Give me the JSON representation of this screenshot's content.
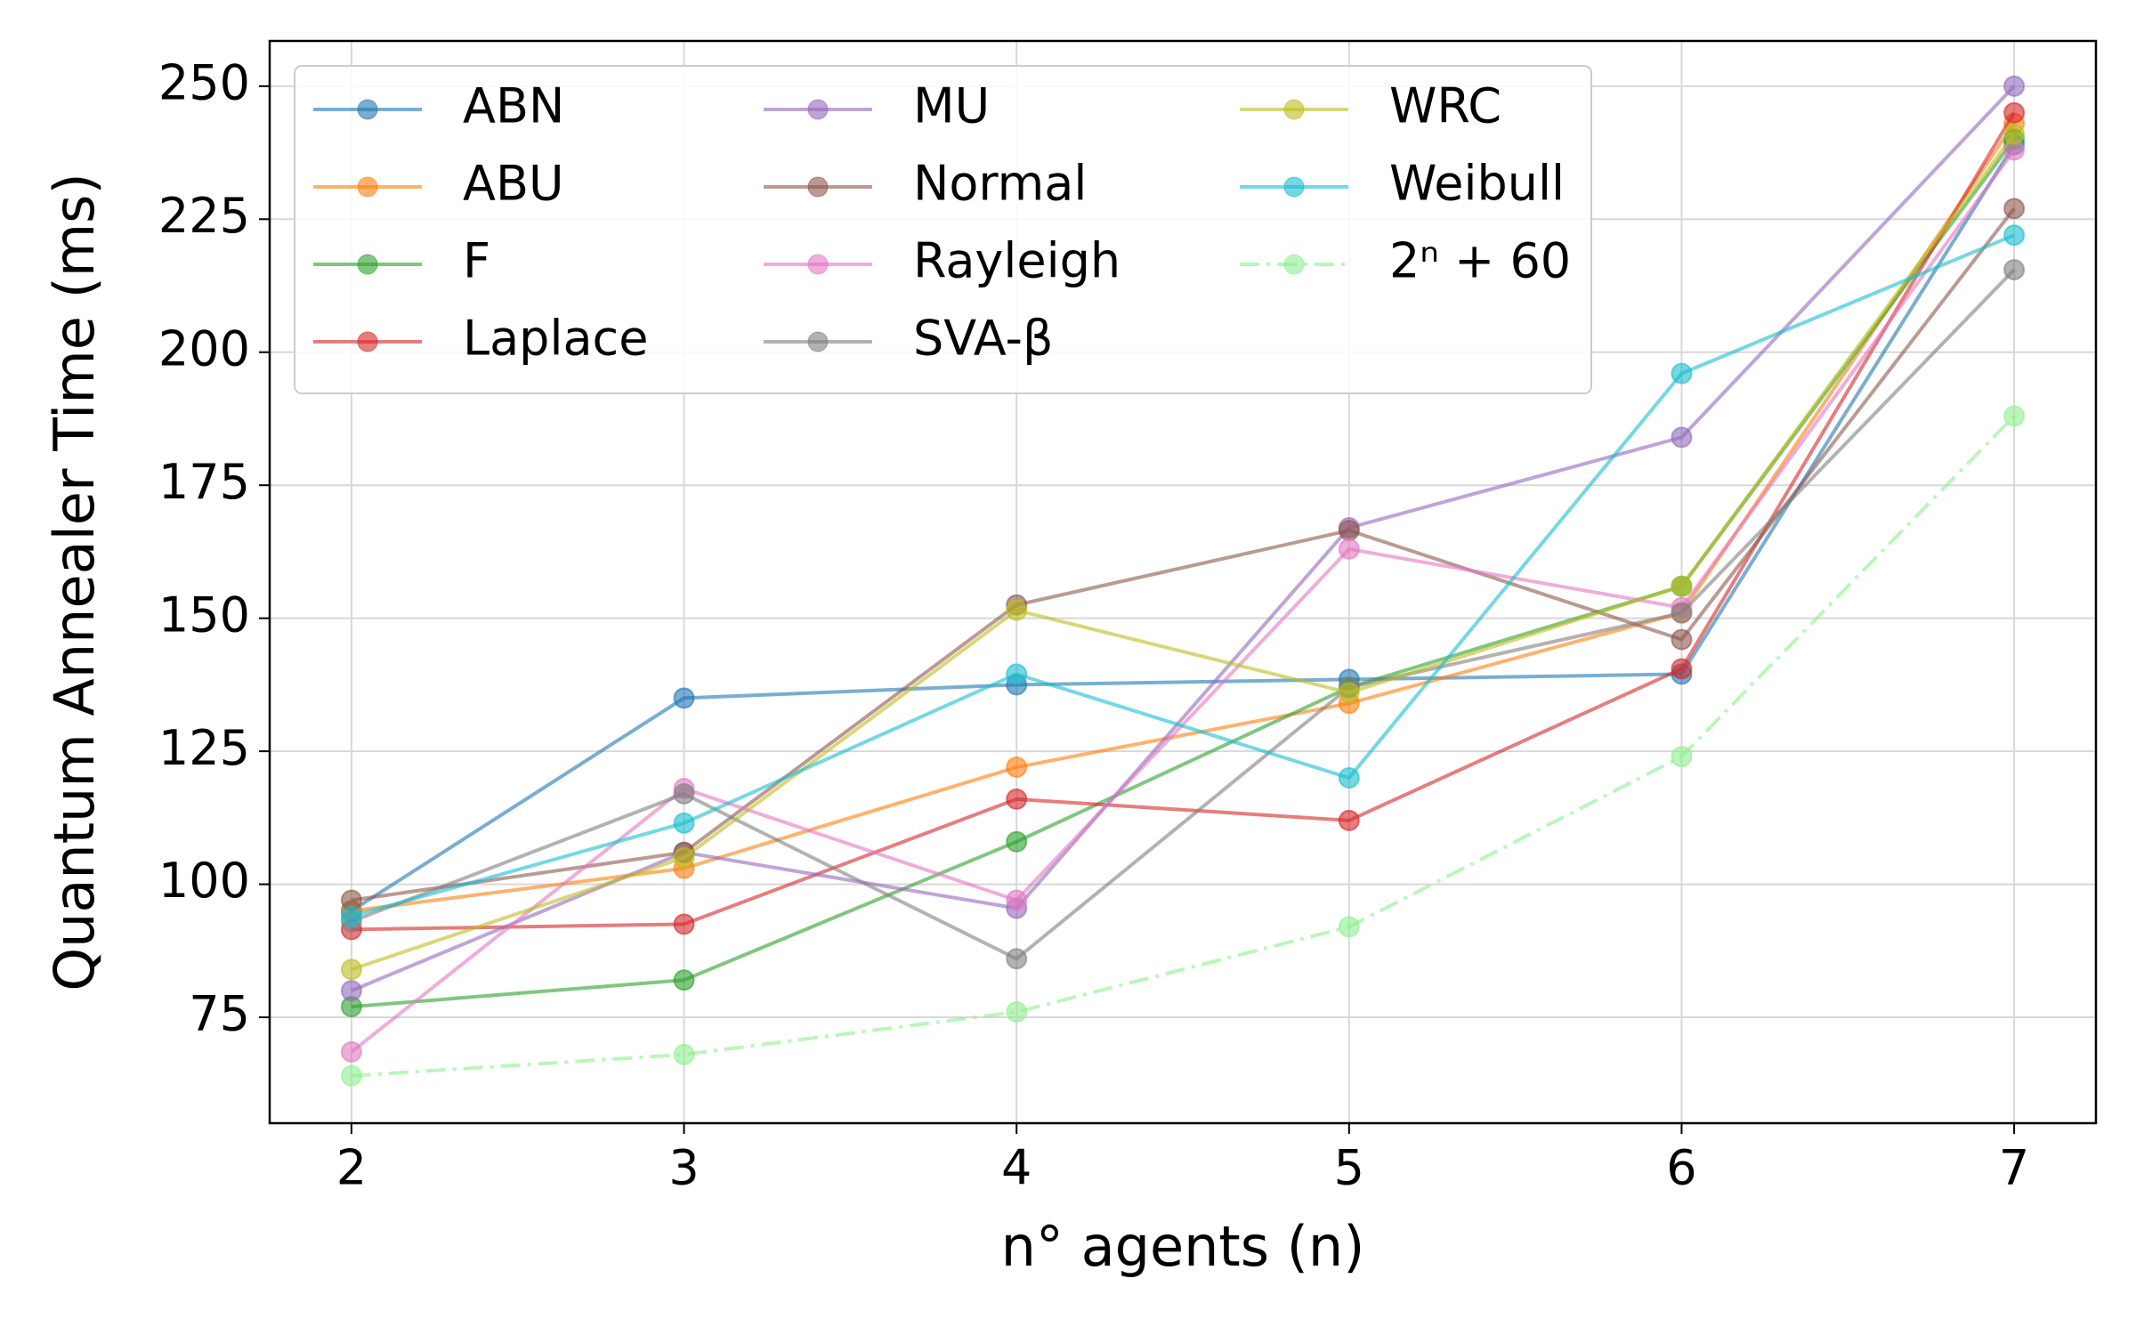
{
  "chart_data": {
    "type": "line",
    "x_label": "n° agents (n)",
    "y_label": "Quantum Annealer Time (ms)",
    "x": [
      2,
      3,
      4,
      5,
      6,
      7
    ],
    "xlim": [
      1.754,
      7.246
    ],
    "xticks": [
      2,
      3,
      4,
      5,
      6,
      7
    ],
    "ylim": [
      55.1,
      258.5
    ],
    "yticks": [
      75,
      100,
      125,
      150,
      175,
      200,
      225,
      250
    ],
    "grid": true,
    "legend": "upper left",
    "legend_columns": 3,
    "series": [
      {
        "name": "ABN",
        "color": "#1f77b4",
        "values": [
          95,
          135,
          137.5,
          138.5,
          139.5,
          239
        ]
      },
      {
        "name": "ABU",
        "color": "#ff7f0e",
        "values": [
          95,
          103,
          122,
          134,
          151,
          243
        ]
      },
      {
        "name": "F",
        "color": "#2ca02c",
        "values": [
          77,
          82,
          108,
          137,
          156,
          240
        ]
      },
      {
        "name": "Laplace",
        "color": "#d62728",
        "values": [
          91.5,
          92.5,
          116,
          112,
          140.5,
          245
        ]
      },
      {
        "name": "MU",
        "color": "#9467bd",
        "values": [
          80,
          106,
          95.5,
          167,
          184,
          250
        ]
      },
      {
        "name": "Normal",
        "color": "#8c564b",
        "values": [
          97,
          106,
          152.5,
          166.5,
          146,
          227
        ]
      },
      {
        "name": "Rayleigh",
        "color": "#e377c2",
        "values": [
          68.5,
          118,
          97,
          163,
          152,
          238
        ]
      },
      {
        "name": "SVA-β",
        "color": "#7f7f7f",
        "values": [
          93,
          117,
          86,
          137,
          151,
          215.5
        ]
      },
      {
        "name": "WRC",
        "color": "#bcbd22",
        "values": [
          84,
          105,
          151.5,
          136,
          156,
          241
        ]
      },
      {
        "name": "Weibull",
        "color": "#17becf",
        "values": [
          94,
          111.5,
          139.5,
          120,
          196,
          222
        ]
      },
      {
        "name": "2ⁿ + 60",
        "color": "#90ee90",
        "linestyle": "dashdot",
        "values": [
          64,
          68,
          76,
          92,
          124,
          188
        ]
      }
    ]
  }
}
